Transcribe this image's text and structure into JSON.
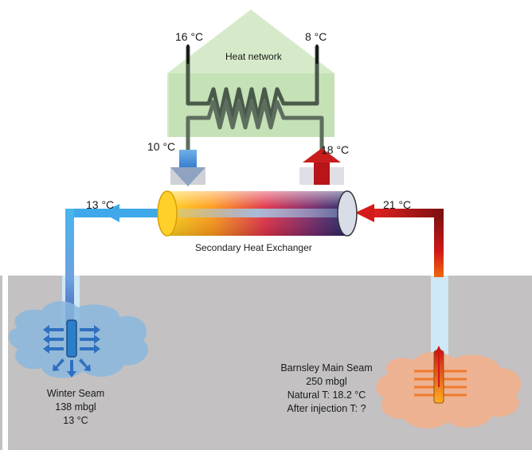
{
  "house": {
    "label": "Heat network"
  },
  "temperatures": {
    "network_flow_out": "16 °C",
    "network_return_in": "8 °C",
    "hx_to_network_return": "10 °C",
    "hx_to_network_supply": "18 °C",
    "return_to_winter": "13 °C",
    "from_barnsley": "21 °C"
  },
  "exchanger": {
    "label": "Secondary Heat Exchanger"
  },
  "winter_seam": {
    "name": "Winter Seam",
    "depth": "138 mbgl",
    "temp": "13 °C"
  },
  "barnsley_seam": {
    "name": "Barnsley Main Seam",
    "depth": "250 mbgl",
    "natural": "Natural T: 18.2 °C",
    "after": "After injection T: ?"
  },
  "colors": {
    "ground": "#c3c1c2",
    "house": "#cfe6c0",
    "cold": "#4aa3e0",
    "hot": "#c81e1e",
    "cloud_blue": "#8ab7de",
    "cloud_orange": "#f1b08d"
  }
}
